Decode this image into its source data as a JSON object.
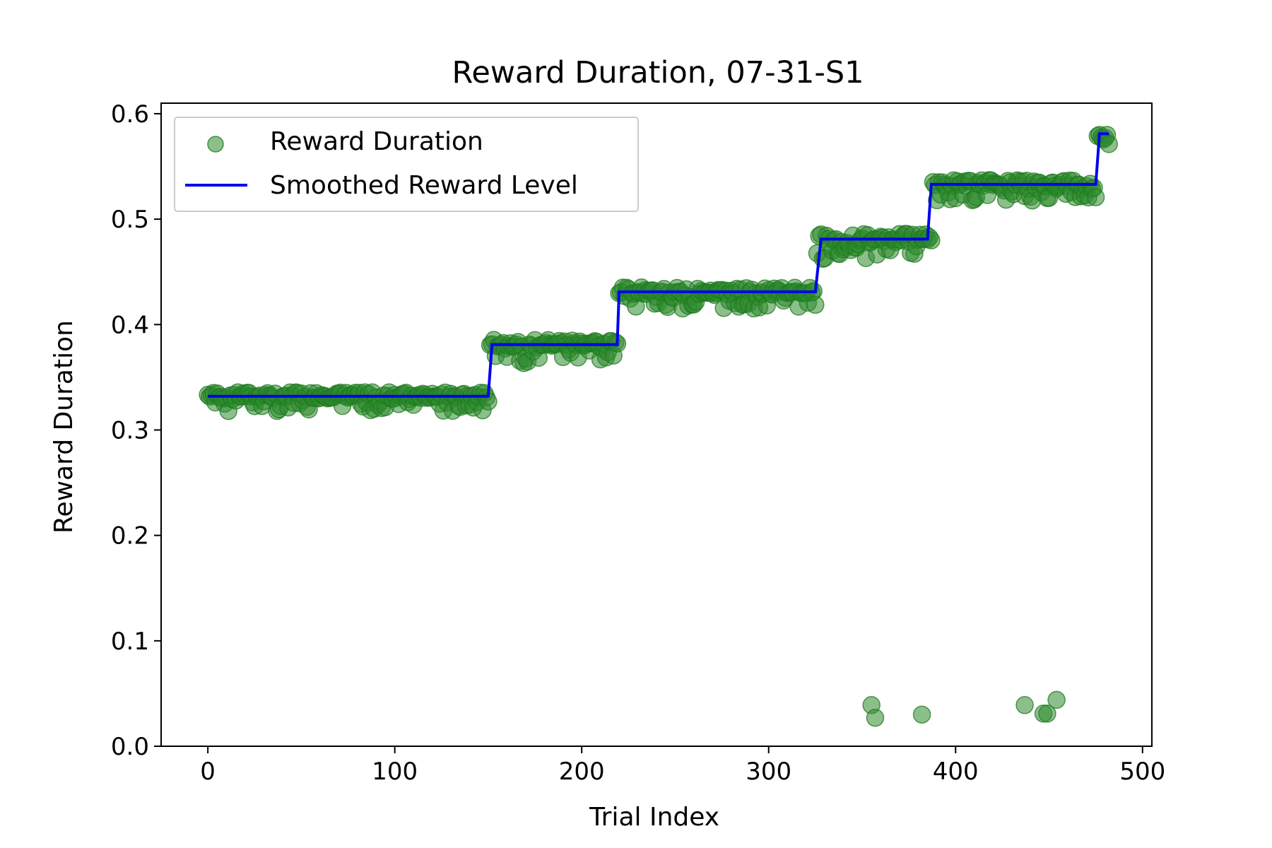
{
  "chart_data": {
    "type": "scatter",
    "title": "Reward Duration, 07-31-S1",
    "xlabel": "Trial Index",
    "ylabel": "Reward Duration",
    "xlim": [
      -25,
      505
    ],
    "ylim": [
      0.0,
      0.61
    ],
    "xticks": [
      0,
      100,
      200,
      300,
      400,
      500
    ],
    "yticks": [
      0.0,
      0.1,
      0.2,
      0.3,
      0.4,
      0.5,
      0.6
    ],
    "xtick_labels": [
      "0",
      "100",
      "200",
      "300",
      "400",
      "500"
    ],
    "ytick_labels": [
      "0.0",
      "0.1",
      "0.2",
      "0.3",
      "0.4",
      "0.5",
      "0.6"
    ],
    "grid": false,
    "legend": {
      "placement": "top-left",
      "entries": [
        {
          "label": "Reward Duration",
          "kind": "marker"
        },
        {
          "label": "Smoothed Reward Level",
          "kind": "line"
        }
      ]
    },
    "colors": {
      "scatter": "#2e8b2e",
      "scatter_edge": "#1f7a1f",
      "line": "#0000ee"
    },
    "series": [
      {
        "name": "Reward Duration",
        "kind": "scatter",
        "segments": [
          {
            "x_start": 0,
            "x_end": 150,
            "level": 0.332,
            "spread": 0.009
          },
          {
            "x_start": 151,
            "x_end": 219,
            "level": 0.381,
            "spread": 0.011
          },
          {
            "x_start": 220,
            "x_end": 325,
            "level": 0.431,
            "spread": 0.01
          },
          {
            "x_start": 326,
            "x_end": 387,
            "level": 0.481,
            "spread": 0.012
          },
          {
            "x_start": 388,
            "x_end": 475,
            "level": 0.533,
            "spread": 0.01
          },
          {
            "x_start": 476,
            "x_end": 482,
            "level": 0.578,
            "spread": 0.006
          }
        ],
        "outliers": [
          {
            "x": 355,
            "y": 0.039
          },
          {
            "x": 357,
            "y": 0.027
          },
          {
            "x": 382,
            "y": 0.03
          },
          {
            "x": 437,
            "y": 0.039
          },
          {
            "x": 447,
            "y": 0.031
          },
          {
            "x": 449,
            "y": 0.031
          },
          {
            "x": 454,
            "y": 0.044
          }
        ]
      },
      {
        "name": "Smoothed Reward Level",
        "kind": "line",
        "points": [
          [
            0,
            0.332
          ],
          [
            150,
            0.332
          ],
          [
            152,
            0.381
          ],
          [
            219,
            0.381
          ],
          [
            220,
            0.431
          ],
          [
            325,
            0.431
          ],
          [
            328,
            0.481
          ],
          [
            385,
            0.481
          ],
          [
            387,
            0.533
          ],
          [
            475,
            0.533
          ],
          [
            477,
            0.581
          ],
          [
            482,
            0.581
          ]
        ]
      }
    ]
  }
}
